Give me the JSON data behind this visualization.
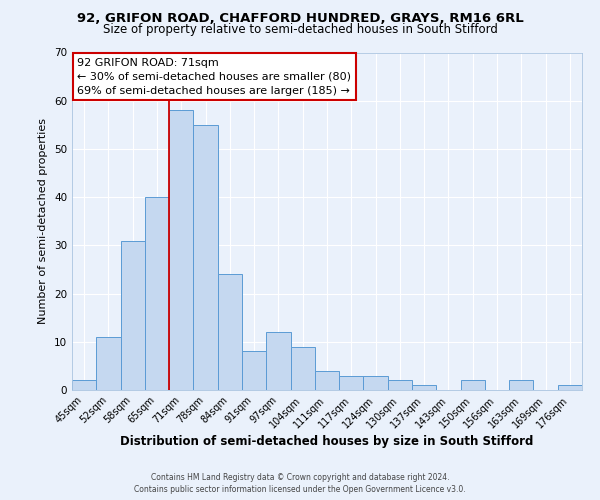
{
  "title": "92, GRIFON ROAD, CHAFFORD HUNDRED, GRAYS, RM16 6RL",
  "subtitle": "Size of property relative to semi-detached houses in South Stifford",
  "xlabel": "Distribution of semi-detached houses by size in South Stifford",
  "ylabel": "Number of semi-detached properties",
  "bin_labels": [
    "45sqm",
    "52sqm",
    "58sqm",
    "65sqm",
    "71sqm",
    "78sqm",
    "84sqm",
    "91sqm",
    "97sqm",
    "104sqm",
    "111sqm",
    "117sqm",
    "124sqm",
    "130sqm",
    "137sqm",
    "143sqm",
    "150sqm",
    "156sqm",
    "163sqm",
    "169sqm",
    "176sqm"
  ],
  "bin_values": [
    2,
    11,
    31,
    40,
    58,
    55,
    24,
    8,
    12,
    9,
    4,
    3,
    3,
    2,
    1,
    0,
    2,
    0,
    2,
    0,
    1
  ],
  "bar_color": "#c5d8f0",
  "bar_edge_color": "#5b9bd5",
  "vline_x_index": 4,
  "vline_color": "#cc0000",
  "annotation_line1": "92 GRIFON ROAD: 71sqm",
  "annotation_line2": "← 30% of semi-detached houses are smaller (80)",
  "annotation_line3": "69% of semi-detached houses are larger (185) →",
  "annotation_box_color": "#ffffff",
  "annotation_box_edge": "#cc0000",
  "ylim": [
    0,
    70
  ],
  "yticks": [
    0,
    10,
    20,
    30,
    40,
    50,
    60,
    70
  ],
  "background_color": "#eaf1fb",
  "grid_color": "#ffffff",
  "footer_line1": "Contains HM Land Registry data © Crown copyright and database right 2024.",
  "footer_line2": "Contains public sector information licensed under the Open Government Licence v3.0.",
  "title_fontsize": 9.5,
  "subtitle_fontsize": 8.5,
  "xlabel_fontsize": 8.5,
  "ylabel_fontsize": 8,
  "annot_fontsize": 8
}
